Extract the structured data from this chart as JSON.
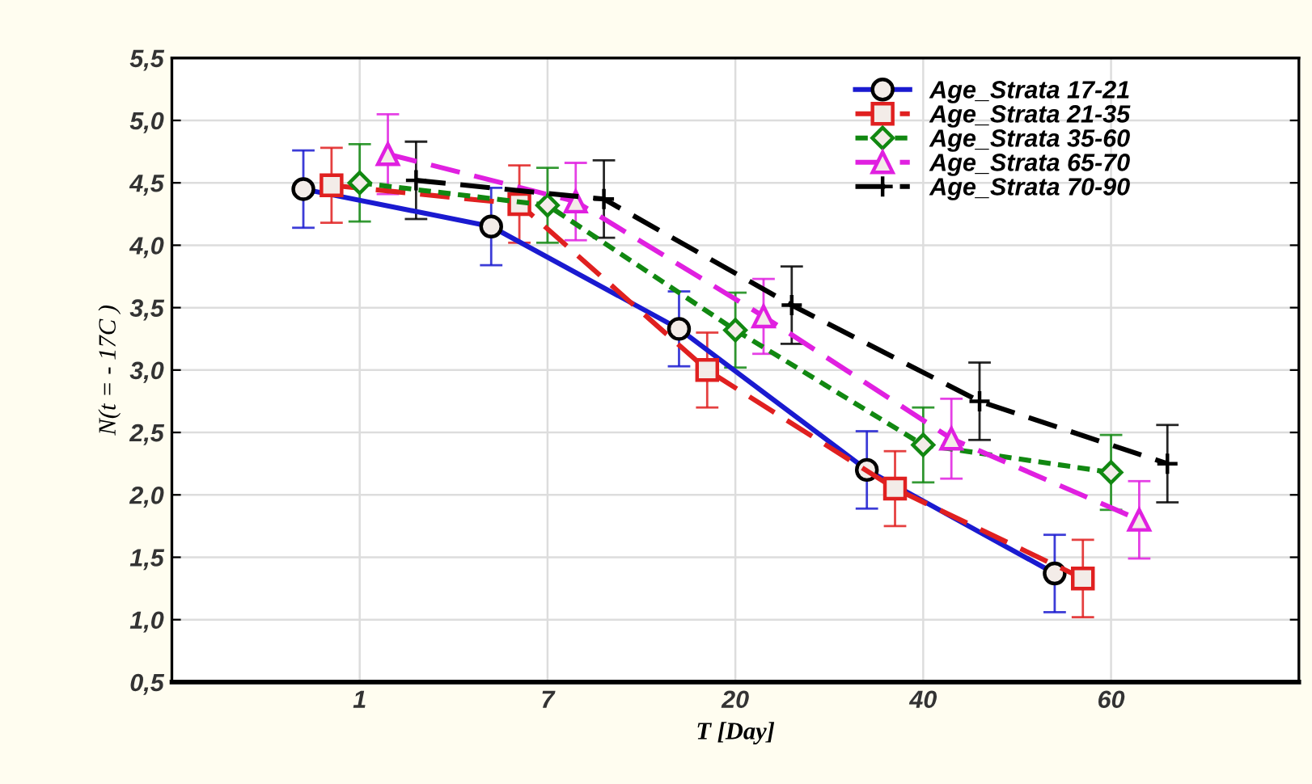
{
  "chart_data": {
    "type": "line",
    "xlabel": "T [Day]",
    "ylabel": "N(t = - 17C )",
    "categories": [
      "1",
      "7",
      "20",
      "40",
      "60"
    ],
    "ylim": [
      0.5,
      5.5
    ],
    "yticks": [
      {
        "value": 0.5,
        "label": "0,5"
      },
      {
        "value": 1.0,
        "label": "1,0"
      },
      {
        "value": 1.5,
        "label": "1,5"
      },
      {
        "value": 2.0,
        "label": "2,0"
      },
      {
        "value": 2.5,
        "label": "2,5"
      },
      {
        "value": 3.0,
        "label": "3,0"
      },
      {
        "value": 3.5,
        "label": "3,5"
      },
      {
        "value": 4.0,
        "label": "4,0"
      },
      {
        "value": 4.5,
        "label": "4,5"
      },
      {
        "value": 5.0,
        "label": "5,0"
      },
      {
        "value": 5.5,
        "label": "5,5"
      }
    ],
    "grid": true,
    "legend": "top right",
    "series": [
      {
        "name": "Age_Strata 17-21",
        "color": "#1a1ad0",
        "marker": "circle",
        "line_style": "solid",
        "values": [
          4.45,
          4.15,
          3.33,
          2.2,
          1.37
        ],
        "errors": [
          0.31,
          0.31,
          0.3,
          0.31,
          0.31
        ]
      },
      {
        "name": "Age_Strata 21-35",
        "color": "#e02020",
        "marker": "square",
        "line_style": "dashed",
        "values": [
          4.48,
          4.33,
          3.0,
          2.05,
          1.33
        ],
        "errors": [
          0.3,
          0.31,
          0.3,
          0.3,
          0.31
        ]
      },
      {
        "name": "Age_Strata 35-60",
        "color": "#118811",
        "marker": "diamond",
        "line_style": "dotted",
        "values": [
          4.5,
          4.32,
          3.32,
          2.4,
          2.18
        ],
        "errors": [
          0.31,
          0.3,
          0.3,
          0.3,
          0.3
        ]
      },
      {
        "name": "Age_Strata 65-70",
        "color": "#e020e0",
        "marker": "triangle",
        "line_style": "dashed",
        "values": [
          4.73,
          4.35,
          3.43,
          2.45,
          1.8
        ],
        "errors": [
          0.32,
          0.31,
          0.3,
          0.32,
          0.31
        ]
      },
      {
        "name": "Age_Strata 70-90",
        "color": "#000000",
        "marker": "cross",
        "line_style": "dashed",
        "values": [
          4.52,
          4.37,
          3.52,
          2.75,
          2.25
        ],
        "errors": [
          0.31,
          0.31,
          0.31,
          0.31,
          0.31
        ]
      }
    ]
  }
}
